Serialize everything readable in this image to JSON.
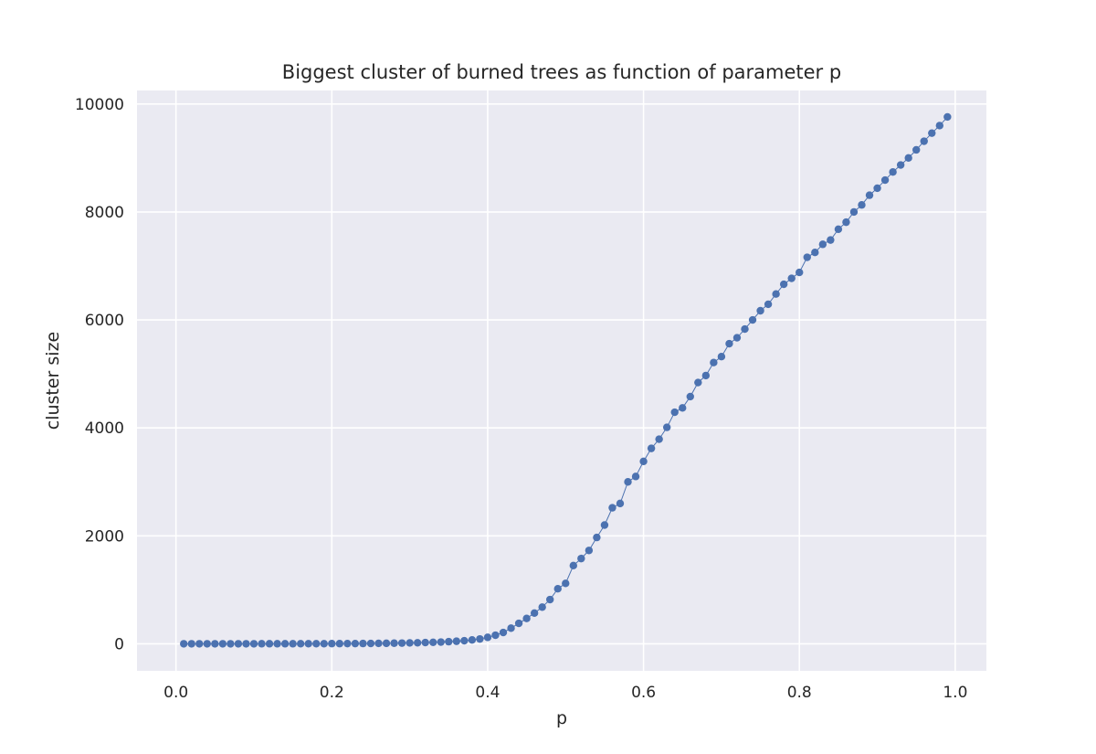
{
  "chart_data": {
    "type": "line",
    "title": "Biggest cluster of burned trees as function of parameter p",
    "xlabel": "p",
    "ylabel": "cluster size",
    "xlim": [
      -0.05,
      1.04
    ],
    "ylim": [
      -500,
      10250
    ],
    "xticks": [
      0.0,
      0.2,
      0.4,
      0.6,
      0.8,
      1.0
    ],
    "xtick_labels": [
      "0.0",
      "0.2",
      "0.4",
      "0.6",
      "0.8",
      "1.0"
    ],
    "yticks": [
      0,
      2000,
      4000,
      6000,
      8000,
      10000
    ],
    "ytick_labels": [
      "0",
      "2000",
      "4000",
      "6000",
      "8000",
      "10000"
    ],
    "grid": true,
    "legend": "none",
    "colors": {
      "plot_background": "#eaeaf2",
      "grid": "#ffffff",
      "series": "#4c72b0",
      "text": "#262626"
    },
    "series": [
      {
        "x": [
          0.01,
          0.02,
          0.03,
          0.04,
          0.05,
          0.06,
          0.07,
          0.08,
          0.09,
          0.1,
          0.11,
          0.12,
          0.13,
          0.14,
          0.15,
          0.16,
          0.17,
          0.18,
          0.19,
          0.2,
          0.21,
          0.22,
          0.23,
          0.24,
          0.25,
          0.26,
          0.27,
          0.28,
          0.29,
          0.3,
          0.31,
          0.32,
          0.33,
          0.34,
          0.35,
          0.36,
          0.37,
          0.38,
          0.39,
          0.4,
          0.41,
          0.42,
          0.43,
          0.44,
          0.45,
          0.46,
          0.47,
          0.48,
          0.49,
          0.5,
          0.51,
          0.52,
          0.53,
          0.54,
          0.55,
          0.56,
          0.57,
          0.58,
          0.59,
          0.6,
          0.61,
          0.62,
          0.63,
          0.64,
          0.65,
          0.66,
          0.67,
          0.68,
          0.69,
          0.7,
          0.71,
          0.72,
          0.73,
          0.74,
          0.75,
          0.76,
          0.77,
          0.78,
          0.79,
          0.8,
          0.81,
          0.82,
          0.83,
          0.84,
          0.85,
          0.86,
          0.87,
          0.88,
          0.89,
          0.9,
          0.91,
          0.92,
          0.93,
          0.94,
          0.95,
          0.96,
          0.97,
          0.98,
          0.99
        ],
        "values": [
          1,
          1,
          1,
          1,
          1,
          1,
          1,
          1,
          1,
          1,
          2,
          2,
          2,
          2,
          2,
          3,
          3,
          3,
          3,
          4,
          4,
          5,
          5,
          6,
          7,
          9,
          10,
          12,
          14,
          17,
          20,
          24,
          28,
          33,
          40,
          48,
          58,
          72,
          90,
          120,
          160,
          210,
          290,
          380,
          470,
          570,
          680,
          820,
          1020,
          1120,
          1450,
          1580,
          1730,
          1970,
          2200,
          2520,
          2600,
          3000,
          3100,
          3380,
          3620,
          3790,
          4010,
          4290,
          4370,
          4580,
          4840,
          4970,
          5210,
          5320,
          5560,
          5670,
          5830,
          6000,
          6170,
          6290,
          6480,
          6660,
          6770,
          6880,
          7160,
          7250,
          7400,
          7480,
          7680,
          7810,
          8000,
          8130,
          8310,
          8440,
          8590,
          8740,
          8870,
          9000,
          9150,
          9310,
          9460,
          9600,
          9760
        ]
      }
    ]
  }
}
